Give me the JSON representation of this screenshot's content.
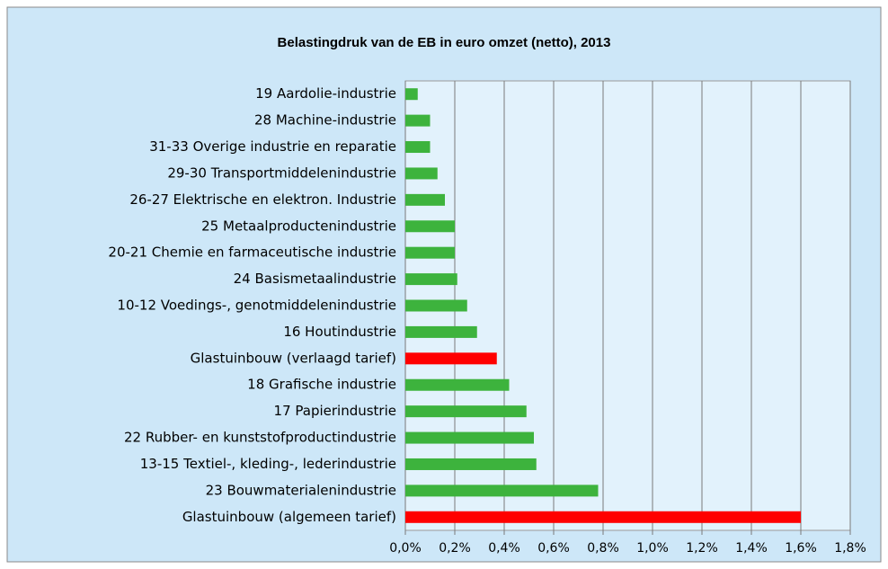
{
  "chart_data": {
    "type": "barh",
    "title": "Belastingdruk van de EB in euro omzet (netto), 2013",
    "categories": [
      "19 Aardolie-industrie",
      "28 Machine-industrie",
      "31-33 Overige industrie en reparatie",
      "29-30 Transportmiddelenindustrie",
      "26-27 Elektrische en elektron. Industrie",
      "25 Metaalproductenindustrie",
      "20-21 Chemie en farmaceutische industrie",
      "24 Basismetaalindustrie",
      "10-12 Voedings-, genotmiddelenindustrie",
      "16 Houtindustrie",
      "Glastuinbouw (verlaagd tarief)",
      "18 Grafische industrie",
      "17 Papierindustrie",
      "22 Rubber- en kunststofproductindustrie",
      "13-15 Textiel-, kleding-, lederindustrie",
      "23 Bouwmaterialenindustrie",
      "Glastuinbouw (algemeen tarief)"
    ],
    "values": [
      0.05,
      0.1,
      0.1,
      0.13,
      0.16,
      0.2,
      0.2,
      0.21,
      0.25,
      0.29,
      0.37,
      0.42,
      0.49,
      0.52,
      0.53,
      0.78,
      1.6
    ],
    "colors": [
      "#3db33d",
      "#3db33d",
      "#3db33d",
      "#3db33d",
      "#3db33d",
      "#3db33d",
      "#3db33d",
      "#3db33d",
      "#3db33d",
      "#3db33d",
      "#ff0000",
      "#3db33d",
      "#3db33d",
      "#3db33d",
      "#3db33d",
      "#3db33d",
      "#ff0000"
    ],
    "xlim": [
      0,
      1.8
    ],
    "xticks": [
      {
        "value": 0,
        "label": "0,0%"
      },
      {
        "value": 0.2,
        "label": "0,2%"
      },
      {
        "value": 0.4,
        "label": "0,4%"
      },
      {
        "value": 0.6,
        "label": "0,6%"
      },
      {
        "value": 0.8,
        "label": "0,8%"
      },
      {
        "value": 1.0,
        "label": "1,0%"
      },
      {
        "value": 1.2,
        "label": "1,2%"
      },
      {
        "value": 1.4,
        "label": "1,4%"
      },
      {
        "value": 1.6,
        "label": "1,6%"
      },
      {
        "value": 1.8,
        "label": "1,8%"
      }
    ],
    "grid": true
  }
}
